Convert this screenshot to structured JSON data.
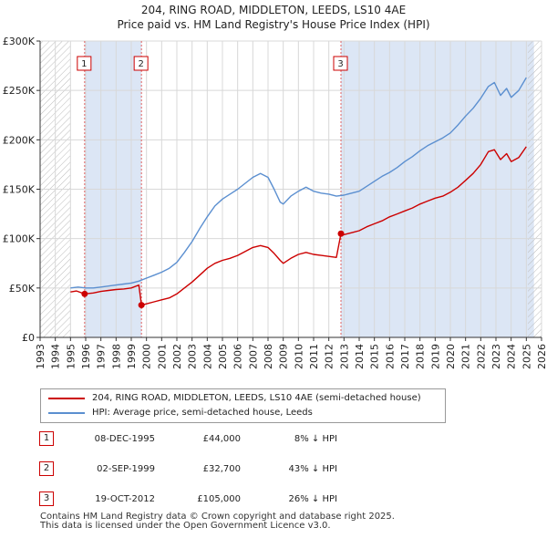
{
  "title_line1": "204, RING ROAD, MIDDLETON, LEEDS, LS10 4AE",
  "title_line2": "Price paid vs. HM Land Registry's House Price Index (HPI)",
  "colors": {
    "red_series": "#cc0000",
    "blue_series": "#5b8fd0",
    "shade": "#dce6f5",
    "grid": "#d8d8d8",
    "marker_line": "#e06060"
  },
  "chart_data": {
    "type": "line",
    "title": "204, RING ROAD, MIDDLETON, LEEDS, LS10 4AE — Price paid vs. HM Land Registry's House Price Index (HPI)",
    "xlabel": "",
    "ylabel": "",
    "xlim": [
      1993,
      2026
    ],
    "ylim": [
      0,
      300000
    ],
    "x_ticks": [
      "1993",
      "1994",
      "1995",
      "1996",
      "1997",
      "1998",
      "1999",
      "2000",
      "2001",
      "2002",
      "2003",
      "2004",
      "2005",
      "2006",
      "2007",
      "2008",
      "2009",
      "2010",
      "2011",
      "2012",
      "2013",
      "2014",
      "2015",
      "2016",
      "2017",
      "2018",
      "2019",
      "2020",
      "2021",
      "2022",
      "2023",
      "2024",
      "2025",
      "2026"
    ],
    "y_ticks": [
      {
        "value": 0,
        "label": "£0"
      },
      {
        "value": 50000,
        "label": "£50K"
      },
      {
        "value": 100000,
        "label": "£100K"
      },
      {
        "value": 150000,
        "label": "£150K"
      },
      {
        "value": 200000,
        "label": "£200K"
      },
      {
        "value": 250000,
        "label": "£250K"
      },
      {
        "value": 300000,
        "label": "£300K"
      }
    ],
    "grid": true,
    "shaded_ranges": [
      [
        1995.93,
        1999.67
      ],
      [
        2012.8,
        2025.5
      ]
    ],
    "hatched_ranges": [
      [
        1993,
        1995.0
      ],
      [
        2025.1,
        2026
      ]
    ],
    "transactions": [
      {
        "id": "1",
        "x": 1995.93,
        "y": 44000
      },
      {
        "id": "2",
        "x": 1999.67,
        "y": 32700
      },
      {
        "id": "3",
        "x": 2012.8,
        "y": 105000
      }
    ],
    "series": [
      {
        "name": "204, RING ROAD, MIDDLETON, LEEDS, LS10 4AE (semi-detached house)",
        "color": "#cc0000",
        "points": [
          [
            1995.0,
            46000
          ],
          [
            1995.4,
            47000
          ],
          [
            1995.93,
            44000
          ],
          [
            1996.5,
            45000
          ],
          [
            1997.0,
            46500
          ],
          [
            1997.5,
            47500
          ],
          [
            1998.0,
            48500
          ],
          [
            1998.5,
            49000
          ],
          [
            1999.0,
            50000
          ],
          [
            1999.5,
            53000
          ],
          [
            1999.67,
            32700
          ],
          [
            2000.0,
            34000
          ],
          [
            2000.5,
            36000
          ],
          [
            2001.0,
            38000
          ],
          [
            2001.5,
            40000
          ],
          [
            2002.0,
            44000
          ],
          [
            2002.5,
            50000
          ],
          [
            2003.0,
            56000
          ],
          [
            2003.5,
            63000
          ],
          [
            2004.0,
            70000
          ],
          [
            2004.5,
            75000
          ],
          [
            2005.0,
            78000
          ],
          [
            2005.5,
            80000
          ],
          [
            2006.0,
            83000
          ],
          [
            2006.5,
            87000
          ],
          [
            2007.0,
            91000
          ],
          [
            2007.5,
            93000
          ],
          [
            2008.0,
            91000
          ],
          [
            2008.4,
            85000
          ],
          [
            2008.8,
            78000
          ],
          [
            2009.0,
            75000
          ],
          [
            2009.5,
            80000
          ],
          [
            2010.0,
            84000
          ],
          [
            2010.5,
            86000
          ],
          [
            2011.0,
            84000
          ],
          [
            2011.5,
            83000
          ],
          [
            2012.0,
            82000
          ],
          [
            2012.5,
            81000
          ],
          [
            2012.8,
            105000
          ],
          [
            2013.0,
            104000
          ],
          [
            2013.5,
            106000
          ],
          [
            2014.0,
            108000
          ],
          [
            2014.5,
            112000
          ],
          [
            2015.0,
            115000
          ],
          [
            2015.5,
            118000
          ],
          [
            2016.0,
            122000
          ],
          [
            2016.5,
            125000
          ],
          [
            2017.0,
            128000
          ],
          [
            2017.5,
            131000
          ],
          [
            2018.0,
            135000
          ],
          [
            2018.5,
            138000
          ],
          [
            2019.0,
            141000
          ],
          [
            2019.5,
            143000
          ],
          [
            2020.0,
            147000
          ],
          [
            2020.5,
            152000
          ],
          [
            2021.0,
            159000
          ],
          [
            2021.5,
            166000
          ],
          [
            2022.0,
            175000
          ],
          [
            2022.5,
            188000
          ],
          [
            2022.9,
            190000
          ],
          [
            2023.3,
            180000
          ],
          [
            2023.7,
            186000
          ],
          [
            2024.0,
            178000
          ],
          [
            2024.5,
            182000
          ],
          [
            2025.0,
            193000
          ]
        ]
      },
      {
        "name": "HPI: Average price, semi-detached house, Leeds",
        "color": "#5b8fd0",
        "points": [
          [
            1995.0,
            50000
          ],
          [
            1995.5,
            51000
          ],
          [
            1996.0,
            50000
          ],
          [
            1996.5,
            50000
          ],
          [
            1997.0,
            51000
          ],
          [
            1997.5,
            52000
          ],
          [
            1998.0,
            53000
          ],
          [
            1998.5,
            54000
          ],
          [
            1999.0,
            55000
          ],
          [
            1999.5,
            57000
          ],
          [
            2000.0,
            60000
          ],
          [
            2000.5,
            63000
          ],
          [
            2001.0,
            66000
          ],
          [
            2001.5,
            70000
          ],
          [
            2002.0,
            76000
          ],
          [
            2002.5,
            86000
          ],
          [
            2003.0,
            97000
          ],
          [
            2003.5,
            110000
          ],
          [
            2004.0,
            122000
          ],
          [
            2004.5,
            133000
          ],
          [
            2005.0,
            140000
          ],
          [
            2005.5,
            145000
          ],
          [
            2006.0,
            150000
          ],
          [
            2006.5,
            156000
          ],
          [
            2007.0,
            162000
          ],
          [
            2007.5,
            166000
          ],
          [
            2008.0,
            162000
          ],
          [
            2008.4,
            150000
          ],
          [
            2008.8,
            137000
          ],
          [
            2009.0,
            135000
          ],
          [
            2009.5,
            143000
          ],
          [
            2010.0,
            148000
          ],
          [
            2010.5,
            152000
          ],
          [
            2011.0,
            148000
          ],
          [
            2011.5,
            146000
          ],
          [
            2012.0,
            145000
          ],
          [
            2012.5,
            143000
          ],
          [
            2013.0,
            144000
          ],
          [
            2013.5,
            146000
          ],
          [
            2014.0,
            148000
          ],
          [
            2014.5,
            153000
          ],
          [
            2015.0,
            158000
          ],
          [
            2015.5,
            163000
          ],
          [
            2016.0,
            167000
          ],
          [
            2016.5,
            172000
          ],
          [
            2017.0,
            178000
          ],
          [
            2017.5,
            183000
          ],
          [
            2018.0,
            189000
          ],
          [
            2018.5,
            194000
          ],
          [
            2019.0,
            198000
          ],
          [
            2019.5,
            202000
          ],
          [
            2020.0,
            207000
          ],
          [
            2020.5,
            215000
          ],
          [
            2021.0,
            224000
          ],
          [
            2021.5,
            232000
          ],
          [
            2022.0,
            242000
          ],
          [
            2022.5,
            254000
          ],
          [
            2022.9,
            258000
          ],
          [
            2023.3,
            245000
          ],
          [
            2023.7,
            252000
          ],
          [
            2024.0,
            243000
          ],
          [
            2024.5,
            250000
          ],
          [
            2025.0,
            263000
          ]
        ]
      }
    ]
  },
  "legend": {
    "red_label": "204, RING ROAD, MIDDLETON, LEEDS, LS10 4AE (semi-detached house)",
    "blue_label": "HPI: Average price, semi-detached house, Leeds"
  },
  "transactions_table": [
    {
      "num": "1",
      "date": "08-DEC-1995",
      "price": "£44,000",
      "hpi": "8% ↓ HPI"
    },
    {
      "num": "2",
      "date": "02-SEP-1999",
      "price": "£32,700",
      "hpi": "43% ↓ HPI"
    },
    {
      "num": "3",
      "date": "19-OCT-2012",
      "price": "£105,000",
      "hpi": "26% ↓ HPI"
    }
  ],
  "footer": {
    "line1": "Contains HM Land Registry data © Crown copyright and database right 2025.",
    "line2": "This data is licensed under the Open Government Licence v3.0."
  }
}
